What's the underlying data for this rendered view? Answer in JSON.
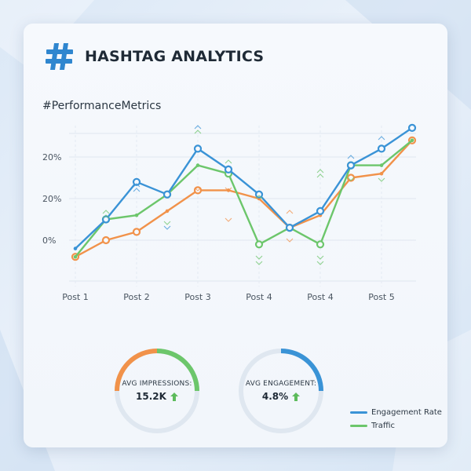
{
  "header": {
    "title": "HASHTAG ANALYTICS",
    "subtitle": "#PerformanceMetrics"
  },
  "colors": {
    "blue": "#3a93d6",
    "green": "#6cc66b",
    "orange": "#f1924a",
    "gauge_track": "#dfe7f0"
  },
  "chart_data": {
    "type": "line",
    "categories": [
      "Post 1",
      "Post 2",
      "Post 3",
      "Post 4",
      "Post 4",
      "Post 5"
    ],
    "y_tick_labels": [
      "20%",
      "20%",
      "0%"
    ],
    "grid": true,
    "x": [
      0,
      0.5,
      1,
      1.5,
      2,
      2.5,
      3,
      3.5,
      4,
      4.5,
      5,
      5.5
    ],
    "series": [
      {
        "name": "Engagement Rate",
        "color": "#3a93d6",
        "values": [
          -2,
          5,
          14,
          11,
          22,
          17,
          11,
          3,
          7,
          18,
          22,
          27
        ],
        "markers": [
          1,
          2,
          3,
          4,
          5,
          6,
          7,
          8,
          9,
          10,
          11
        ]
      },
      {
        "name": "Traffic",
        "color": "#6cc66b",
        "values": [
          -4,
          5,
          6,
          11,
          18,
          16,
          -1,
          3,
          -1,
          18,
          18,
          24
        ],
        "markers": [
          1,
          3,
          5,
          6,
          8,
          9
        ]
      },
      {
        "name": "",
        "color": "#f1924a",
        "values": [
          -4,
          0,
          2,
          7,
          12,
          12,
          10,
          3,
          6,
          15,
          16,
          24
        ],
        "markers": [
          0,
          1,
          2,
          4,
          7,
          9,
          11
        ]
      }
    ]
  },
  "gauges": [
    {
      "label": "AVG IMPRESSIONS:",
      "value": "15.2K",
      "fraction": 0.5,
      "colors": [
        "#f1924a",
        "#6cc66b"
      ]
    },
    {
      "label": "AVG ENGAGEMENT:",
      "value": "4.8%",
      "fraction": 0.25,
      "colors": [
        "#3a93d6"
      ]
    }
  ],
  "legend": [
    {
      "label": "Engagement Rate",
      "color": "#3a93d6"
    },
    {
      "label": "Traffic",
      "color": "#6cc66b"
    }
  ]
}
